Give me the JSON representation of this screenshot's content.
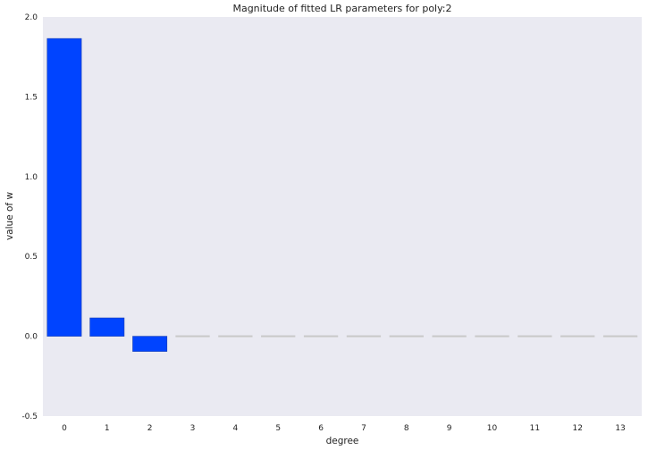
{
  "chart_data": {
    "type": "bar",
    "title": "Magnitude of fitted LR parameters for poly:2",
    "xlabel": "degree",
    "ylabel": "value of w",
    "categories": [
      "0",
      "1",
      "2",
      "3",
      "4",
      "5",
      "6",
      "7",
      "8",
      "9",
      "10",
      "11",
      "12",
      "13"
    ],
    "values": [
      1.865,
      0.115,
      -0.095,
      0,
      0,
      0,
      0,
      0,
      0,
      0,
      0,
      0,
      0,
      0
    ],
    "ylim": [
      -0.5,
      2.0
    ],
    "yticks": [
      "-0.5",
      "0.0",
      "0.5",
      "1.0",
      "1.5",
      "2.0"
    ],
    "grid": false,
    "legend": "none",
    "colors": {
      "bar": "#0044ff",
      "zero_bar": "#c8c8c8",
      "background": "#eaeaf2"
    }
  }
}
